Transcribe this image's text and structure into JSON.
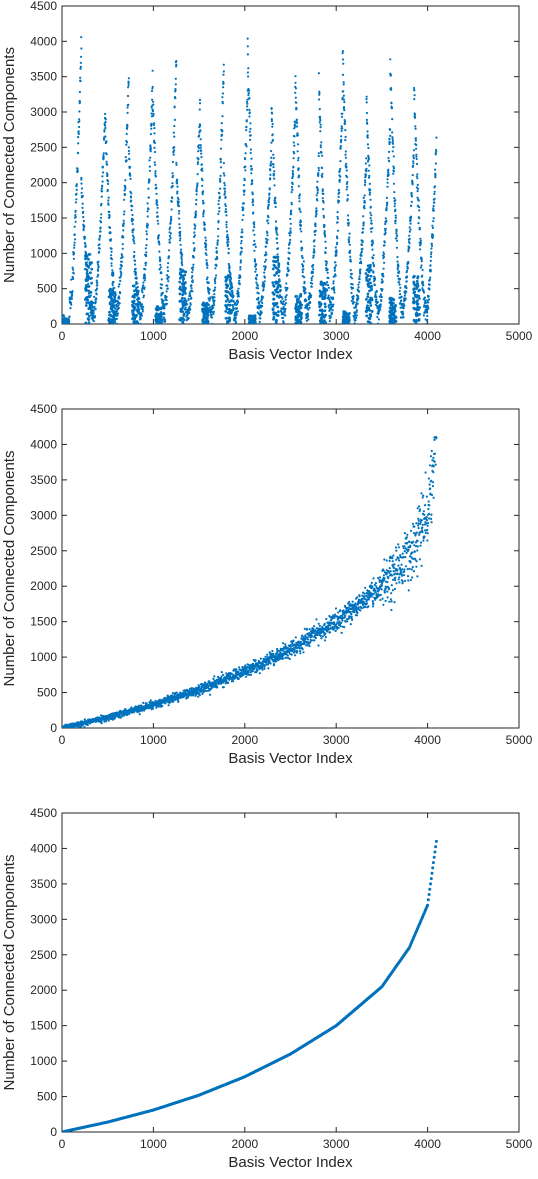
{
  "style": {
    "point_color": "#0072BD",
    "axes_color": "#262626",
    "background": "#ffffff"
  },
  "chart_data": [
    {
      "type": "scatter",
      "xlabel": "Basis Vector Index",
      "ylabel": "Number of Connected Components",
      "xlim": [
        0,
        5000
      ],
      "ylim": [
        0,
        4500
      ],
      "xticks": [
        0,
        1000,
        2000,
        3000,
        4000,
        5000
      ],
      "yticks": [
        0,
        500,
        1000,
        1500,
        2000,
        2500,
        3000,
        3500,
        4000,
        4500
      ],
      "box": true,
      "grid": false,
      "pattern": "interleaved oscillating sawtooth bands",
      "segments": [
        {
          "x_start": 0,
          "x_end": 80,
          "y_top": 80
        },
        {
          "x_start": 80,
          "x_end": 210,
          "y_top": 4100
        },
        {
          "x_start": 210,
          "x_end": 340,
          "y_top": 2100
        },
        {
          "x_start": 340,
          "x_end": 470,
          "y_top": 3100
        },
        {
          "x_start": 470,
          "x_end": 600,
          "y_top": 3050
        },
        {
          "x_start": 600,
          "x_end": 730,
          "y_top": 3650
        },
        {
          "x_start": 730,
          "x_end": 860,
          "y_top": 2600
        },
        {
          "x_start": 860,
          "x_end": 990,
          "y_top": 3600
        },
        {
          "x_start": 990,
          "x_end": 1120,
          "y_top": 3450
        },
        {
          "x_start": 1120,
          "x_end": 1250,
          "y_top": 3900
        },
        {
          "x_start": 1250,
          "x_end": 1380,
          "y_top": 2300
        },
        {
          "x_start": 1380,
          "x_end": 1510,
          "y_top": 3300
        },
        {
          "x_start": 1510,
          "x_end": 1640,
          "y_top": 2850
        },
        {
          "x_start": 1640,
          "x_end": 1770,
          "y_top": 3850
        },
        {
          "x_start": 1770,
          "x_end": 1900,
          "y_top": 2200
        },
        {
          "x_start": 1900,
          "x_end": 2030,
          "y_top": 3400
        },
        {
          "x_start": 2030,
          "x_end": 2160,
          "y_top": 4050
        },
        {
          "x_start": 2160,
          "x_end": 2290,
          "y_top": 2650
        },
        {
          "x_start": 2290,
          "x_end": 2420,
          "y_top": 3200
        },
        {
          "x_start": 2420,
          "x_end": 2550,
          "y_top": 3100
        },
        {
          "x_start": 2550,
          "x_end": 2680,
          "y_top": 3700
        },
        {
          "x_start": 2680,
          "x_end": 2810,
          "y_top": 2500
        },
        {
          "x_start": 2810,
          "x_end": 2940,
          "y_top": 3550
        },
        {
          "x_start": 2940,
          "x_end": 3070,
          "y_top": 3350
        },
        {
          "x_start": 3070,
          "x_end": 3200,
          "y_top": 3950
        },
        {
          "x_start": 3200,
          "x_end": 3330,
          "y_top": 2450
        },
        {
          "x_start": 3330,
          "x_end": 3460,
          "y_top": 3250
        },
        {
          "x_start": 3460,
          "x_end": 3590,
          "y_top": 3000
        },
        {
          "x_start": 3590,
          "x_end": 3720,
          "y_top": 3800
        },
        {
          "x_start": 3720,
          "x_end": 3850,
          "y_top": 2650
        },
        {
          "x_start": 3850,
          "x_end": 3980,
          "y_top": 3450
        },
        {
          "x_start": 3980,
          "x_end": 4096,
          "y_top": 2700
        }
      ],
      "dense_blocks": [
        {
          "x": 40,
          "y_max": 70
        },
        {
          "x": 290,
          "y_max": 1000
        },
        {
          "x": 545,
          "y_max": 500
        },
        {
          "x": 805,
          "y_max": 560
        },
        {
          "x": 1060,
          "y_max": 250
        },
        {
          "x": 1320,
          "y_max": 800
        },
        {
          "x": 1570,
          "y_max": 300
        },
        {
          "x": 1825,
          "y_max": 700
        },
        {
          "x": 2080,
          "y_max": 120
        },
        {
          "x": 2340,
          "y_max": 950
        },
        {
          "x": 2590,
          "y_max": 430
        },
        {
          "x": 2850,
          "y_max": 600
        },
        {
          "x": 3110,
          "y_max": 180
        },
        {
          "x": 3360,
          "y_max": 850
        },
        {
          "x": 3620,
          "y_max": 370
        },
        {
          "x": 3880,
          "y_max": 680
        }
      ]
    },
    {
      "type": "scatter",
      "xlabel": "Basis Vector Index",
      "ylabel": "Number of Connected Components",
      "xlim": [
        0,
        5000
      ],
      "ylim": [
        0,
        4500
      ],
      "xticks": [
        0,
        1000,
        2000,
        3000,
        4000,
        5000
      ],
      "yticks": [
        0,
        500,
        1000,
        1500,
        2000,
        2500,
        3000,
        3500,
        4000,
        4500
      ],
      "box": true,
      "grid": false,
      "pattern": "noisy increasing curve",
      "trend": [
        [
          0,
          0
        ],
        [
          500,
          150
        ],
        [
          1000,
          330
        ],
        [
          1500,
          540
        ],
        [
          2000,
          800
        ],
        [
          2500,
          1100
        ],
        [
          3000,
          1500
        ],
        [
          3500,
          2000
        ],
        [
          3800,
          2450
        ],
        [
          4000,
          3000
        ],
        [
          4096,
          4100
        ]
      ],
      "y_max": 4100
    },
    {
      "type": "scatter",
      "xlabel": "Basis Vector Index",
      "ylabel": "Number of Connected Components",
      "xlim": [
        0,
        5000
      ],
      "ylim": [
        0,
        4500
      ],
      "xticks": [
        0,
        1000,
        2000,
        3000,
        4000,
        5000
      ],
      "yticks": [
        0,
        500,
        1000,
        1500,
        2000,
        2500,
        3000,
        3500,
        4000,
        4500
      ],
      "box": true,
      "grid": false,
      "pattern": "smooth monotonic increasing curve",
      "trend": [
        [
          0,
          0
        ],
        [
          500,
          140
        ],
        [
          1000,
          310
        ],
        [
          1500,
          520
        ],
        [
          2000,
          780
        ],
        [
          2500,
          1100
        ],
        [
          3000,
          1500
        ],
        [
          3500,
          2050
        ],
        [
          3800,
          2600
        ],
        [
          4000,
          3200
        ],
        [
          4096,
          4100
        ]
      ],
      "y_max": 4100
    }
  ]
}
